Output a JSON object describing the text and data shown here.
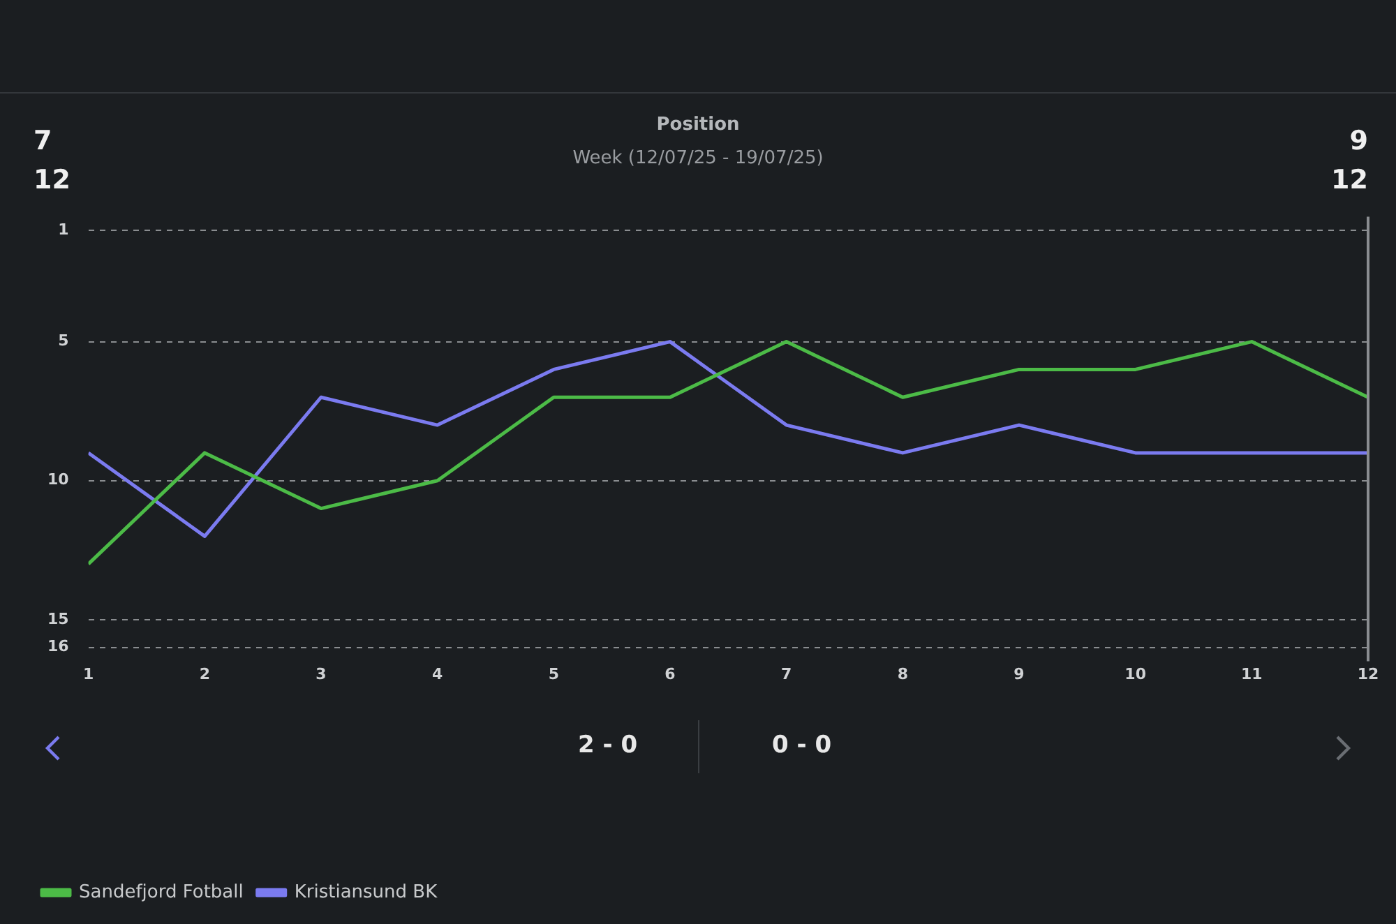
{
  "chart_data": {
    "type": "line",
    "title": "Position",
    "subtitle": "Week (12/07/25 - 19/07/25)",
    "annotations": [
      "7",
      "12",
      "9",
      "12",
      "2 - 0",
      "0 - 0"
    ],
    "x": [
      1,
      2,
      3,
      4,
      5,
      6,
      7,
      8,
      9,
      10,
      11,
      12
    ],
    "series": [
      {
        "name": "Sandefjord Fotball",
        "color": "#4cbb47",
        "values": [
          13,
          9,
          11,
          10,
          7,
          7,
          5,
          7,
          6,
          6,
          5,
          7
        ]
      },
      {
        "name": "Kristiansund BK",
        "color": "#7b7bf0",
        "values": [
          9,
          12,
          7,
          8,
          6,
          5,
          8,
          9,
          8,
          9,
          9,
          9
        ]
      }
    ],
    "xlim": [
      1,
      12
    ],
    "xticks": [
      1,
      2,
      3,
      4,
      5,
      6,
      7,
      8,
      9,
      10,
      11,
      12
    ],
    "ylim": [
      16.5,
      0.5
    ],
    "yticks": [
      1,
      5,
      10,
      15,
      16
    ],
    "ref_lines": [
      {
        "axis": "x",
        "value": 12,
        "color": "#8a8d91"
      }
    ],
    "grid": "y",
    "legend": "bottom left",
    "marker": "none",
    "line_style": "solid"
  }
}
